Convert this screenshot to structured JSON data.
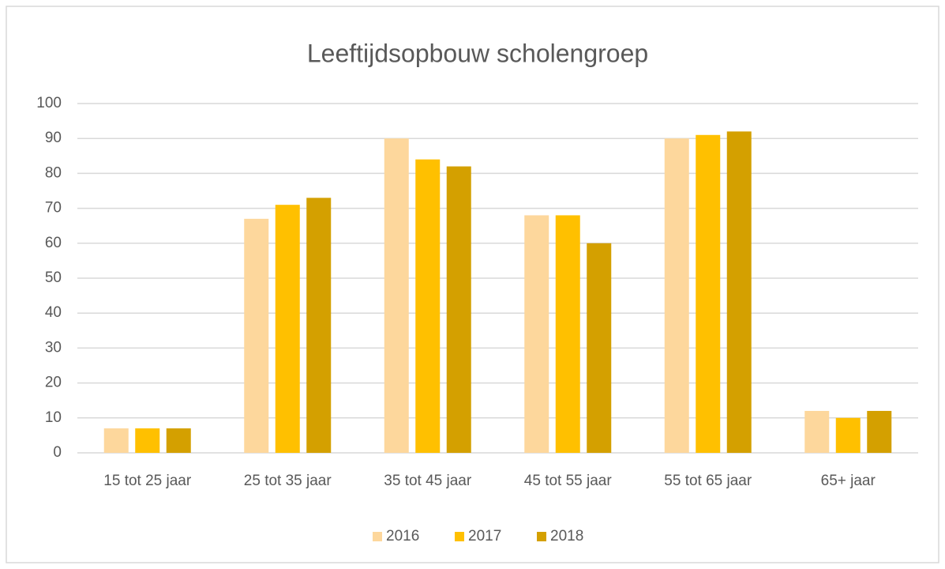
{
  "chart_data": {
    "type": "bar",
    "title": "Leeftijdsopbouw scholengroep",
    "categories": [
      "15 tot 25 jaar",
      "25 tot 35 jaar",
      "35 tot 45 jaar",
      "45 tot 55 jaar",
      "55 tot 65 jaar",
      "65+ jaar"
    ],
    "series": [
      {
        "name": "2016",
        "color": "#fdd79c",
        "values": [
          7,
          67,
          90,
          68,
          90,
          12
        ]
      },
      {
        "name": "2017",
        "color": "#ffc000",
        "values": [
          7,
          71,
          84,
          68,
          91,
          10
        ]
      },
      {
        "name": "2018",
        "color": "#d4a000",
        "values": [
          7,
          73,
          82,
          60,
          92,
          12
        ]
      }
    ],
    "ylim": [
      0,
      100
    ],
    "yticks": [
      0,
      10,
      20,
      30,
      40,
      50,
      60,
      70,
      80,
      90,
      100
    ],
    "grid": true,
    "legend": "bottom"
  }
}
